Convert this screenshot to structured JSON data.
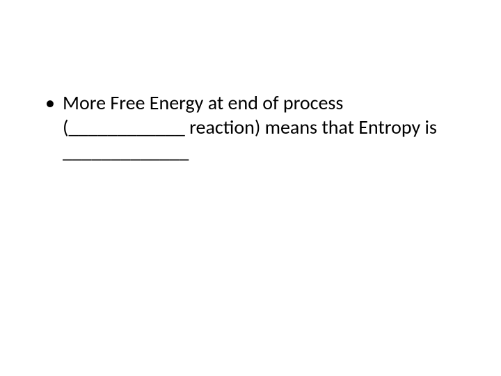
{
  "slide": {
    "background_color": "#ffffff",
    "text_color": "#000000",
    "font_family": "Calibri",
    "font_size": 28,
    "bullets": [
      {
        "text": "More Free Energy at end of process (____________ reaction) means that Entropy is _____________"
      }
    ]
  }
}
